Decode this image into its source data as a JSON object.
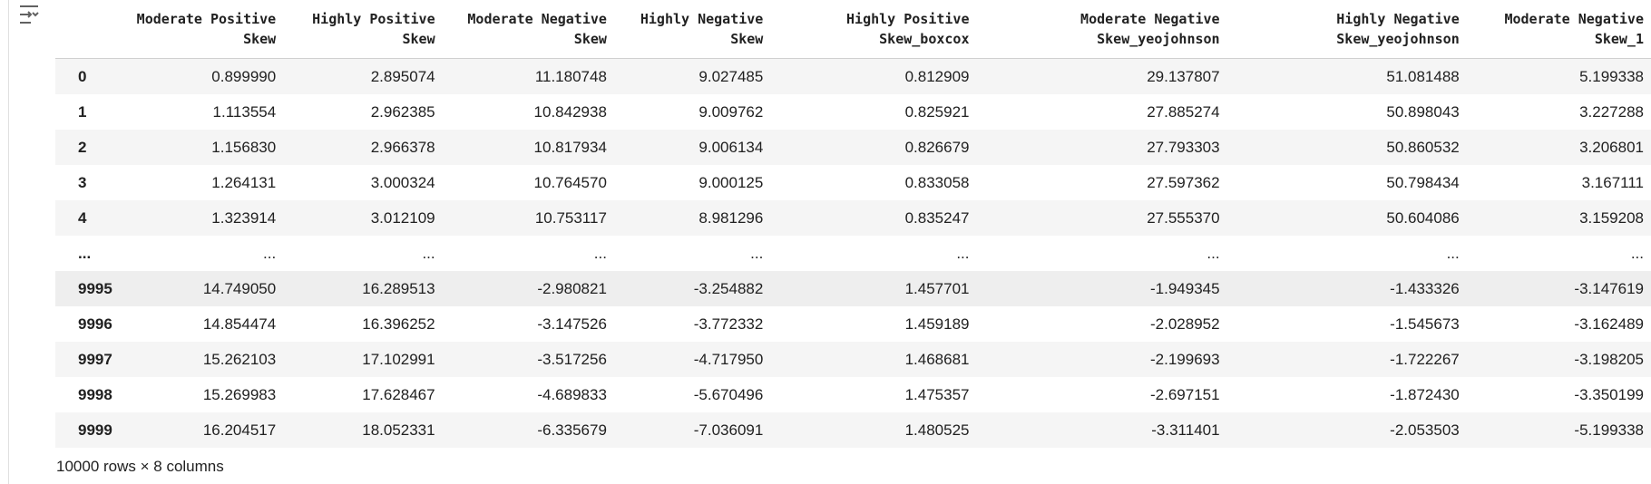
{
  "columns": [
    [
      "Moderate Positive",
      "Skew"
    ],
    [
      "Highly Positive",
      "Skew"
    ],
    [
      "Moderate Negative",
      "Skew"
    ],
    [
      "Highly Negative",
      "Skew"
    ],
    [
      "Highly Positive",
      "Skew_boxcox"
    ],
    [
      "Moderate Negative",
      "Skew_yeojohnson"
    ],
    [
      "Highly Negative",
      "Skew_yeojohnson"
    ],
    [
      "Moderate Negative",
      "Skew_1"
    ]
  ],
  "rows": [
    {
      "index": "0",
      "values": [
        "0.899990",
        "2.895074",
        "11.180748",
        "9.027485",
        "0.812909",
        "29.137807",
        "51.081488",
        "5.199338"
      ]
    },
    {
      "index": "1",
      "values": [
        "1.113554",
        "2.962385",
        "10.842938",
        "9.009762",
        "0.825921",
        "27.885274",
        "50.898043",
        "3.227288"
      ]
    },
    {
      "index": "2",
      "values": [
        "1.156830",
        "2.966378",
        "10.817934",
        "9.006134",
        "0.826679",
        "27.793303",
        "50.860532",
        "3.206801"
      ]
    },
    {
      "index": "3",
      "values": [
        "1.264131",
        "3.000324",
        "10.764570",
        "9.000125",
        "0.833058",
        "27.597362",
        "50.798434",
        "3.167111"
      ]
    },
    {
      "index": "4",
      "values": [
        "1.323914",
        "3.012109",
        "10.753117",
        "8.981296",
        "0.835247",
        "27.555370",
        "50.604086",
        "3.159208"
      ]
    },
    {
      "index": "...",
      "values": [
        "...",
        "...",
        "...",
        "...",
        "...",
        "...",
        "...",
        "..."
      ]
    },
    {
      "index": "9995",
      "values": [
        "14.749050",
        "16.289513",
        "-2.980821",
        "-3.254882",
        "1.457701",
        "-1.949345",
        "-1.433326",
        "-3.147619"
      ]
    },
    {
      "index": "9996",
      "values": [
        "14.854474",
        "16.396252",
        "-3.147526",
        "-3.772332",
        "1.459189",
        "-2.028952",
        "-1.545673",
        "-3.162489"
      ]
    },
    {
      "index": "9997",
      "values": [
        "15.262103",
        "17.102991",
        "-3.517256",
        "-4.717950",
        "1.468681",
        "-2.199693",
        "-1.722267",
        "-3.198205"
      ]
    },
    {
      "index": "9998",
      "values": [
        "15.269983",
        "17.628467",
        "-4.689833",
        "-5.670496",
        "1.475357",
        "-2.697151",
        "-1.872430",
        "-3.350199"
      ]
    },
    {
      "index": "9999",
      "values": [
        "16.204517",
        "18.052331",
        "-6.335679",
        "-7.036091",
        "1.480525",
        "-3.311401",
        "-2.053503",
        "-5.199338"
      ]
    }
  ],
  "highlighted_row": "9995",
  "footer": "10000 rows × 8 columns",
  "icons": {
    "output_toggle": "output-toggle-icon"
  }
}
